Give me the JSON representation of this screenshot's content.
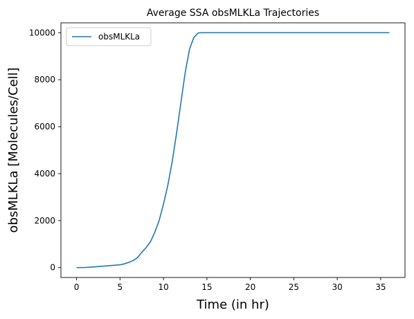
{
  "chart_data": {
    "type": "line",
    "title": "Average SSA obsMLKLa Trajectories",
    "xlabel": "Time (in hr)",
    "ylabel": "obsMLKLa [Molecules/Cell]",
    "xlim": [
      -1.8,
      37.8
    ],
    "ylim": [
      -420,
      10420
    ],
    "xticks": [
      0,
      5,
      10,
      15,
      20,
      25,
      30,
      35
    ],
    "yticks": [
      0,
      2000,
      4000,
      6000,
      8000,
      10000
    ],
    "grid": false,
    "legend": {
      "position": "top-left",
      "entries": [
        "obsMLKLa"
      ]
    },
    "series": [
      {
        "name": "obsMLKLa",
        "color": "#1f77b4",
        "x": [
          0,
          1,
          2,
          3,
          4,
          5,
          5.5,
          6,
          6.5,
          7,
          7.5,
          8,
          8.5,
          9,
          9.5,
          10,
          10.5,
          11,
          11.5,
          12,
          12.5,
          13,
          13.5,
          14,
          14.5,
          15,
          20,
          25,
          30,
          36
        ],
        "y": [
          0,
          5,
          30,
          60,
          90,
          120,
          160,
          220,
          300,
          420,
          650,
          850,
          1100,
          1500,
          2000,
          2700,
          3500,
          4500,
          5700,
          7000,
          8300,
          9300,
          9800,
          9990,
          10000,
          10000,
          10000,
          10000,
          10000,
          10000
        ]
      }
    ]
  }
}
